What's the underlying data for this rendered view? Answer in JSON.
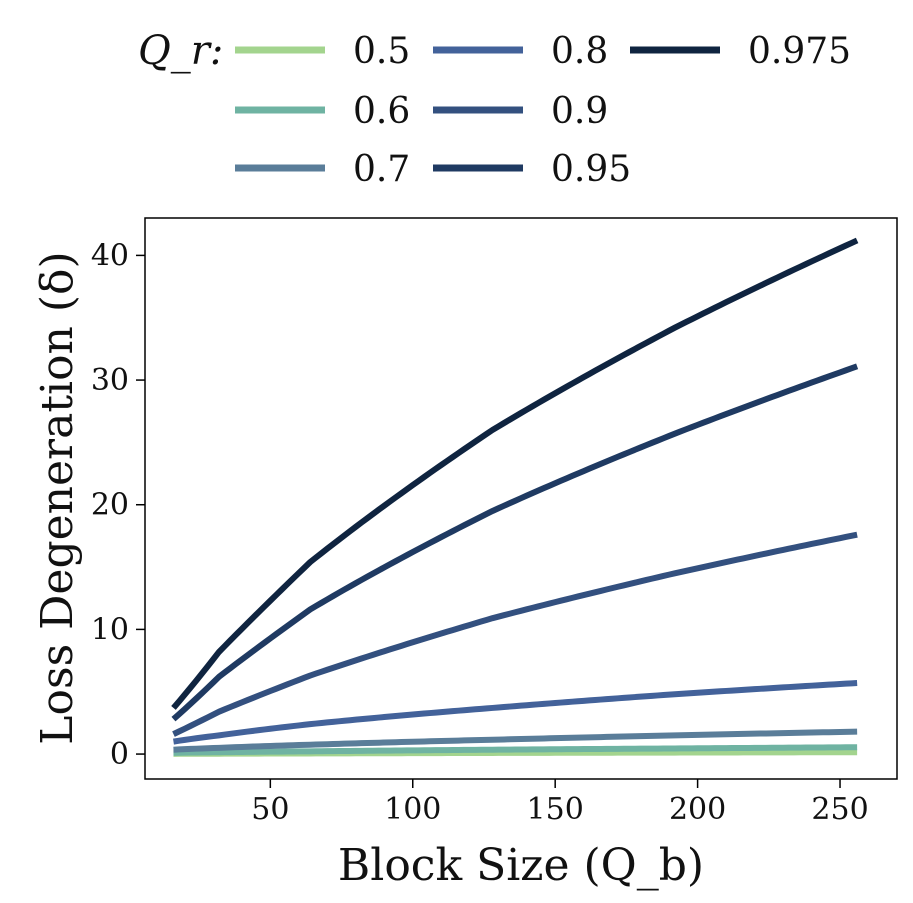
{
  "chart_data": {
    "type": "line",
    "title": "",
    "xlabel": "Block Size (Q_b)",
    "ylabel": "Loss Degeneration (δ)",
    "xlim": [
      6,
      270
    ],
    "ylim": [
      -2,
      43
    ],
    "xticks": [
      50,
      100,
      150,
      200,
      250
    ],
    "yticks": [
      0,
      10,
      20,
      30,
      40
    ],
    "grid": false,
    "legend": {
      "title": "Q_r:",
      "placement": "top",
      "columns": 3
    },
    "x_range": [
      16,
      256
    ],
    "series": [
      {
        "name": "0.5",
        "color": "#a3d48e",
        "points": [
          [
            16,
            0.02
          ],
          [
            32,
            0.03
          ],
          [
            64,
            0.05
          ],
          [
            128,
            0.09
          ],
          [
            192,
            0.12
          ],
          [
            256,
            0.15
          ]
        ]
      },
      {
        "name": "0.6",
        "color": "#6fb3a2",
        "points": [
          [
            16,
            0.1
          ],
          [
            32,
            0.15
          ],
          [
            64,
            0.22
          ],
          [
            128,
            0.35
          ],
          [
            192,
            0.45
          ],
          [
            256,
            0.55
          ]
        ]
      },
      {
        "name": "0.7",
        "color": "#5a7d99",
        "points": [
          [
            16,
            0.35
          ],
          [
            32,
            0.5
          ],
          [
            64,
            0.75
          ],
          [
            128,
            1.15
          ],
          [
            192,
            1.5
          ],
          [
            256,
            1.8
          ]
        ]
      },
      {
        "name": "0.8",
        "color": "#43629a",
        "points": [
          [
            16,
            1.0
          ],
          [
            32,
            1.5
          ],
          [
            64,
            2.4
          ],
          [
            128,
            3.7
          ],
          [
            192,
            4.8
          ],
          [
            256,
            5.7
          ]
        ]
      },
      {
        "name": "0.9",
        "color": "#33507f",
        "points": [
          [
            16,
            1.6
          ],
          [
            32,
            3.4
          ],
          [
            64,
            6.3
          ],
          [
            128,
            10.9
          ],
          [
            192,
            14.5
          ],
          [
            256,
            17.6
          ]
        ]
      },
      {
        "name": "0.95",
        "color": "#1f3a62",
        "points": [
          [
            16,
            2.8
          ],
          [
            32,
            6.2
          ],
          [
            64,
            11.6
          ],
          [
            128,
            19.5
          ],
          [
            192,
            25.7
          ],
          [
            256,
            31.1
          ]
        ]
      },
      {
        "name": "0.975",
        "color": "#0f2440",
        "points": [
          [
            16,
            3.7
          ],
          [
            32,
            8.2
          ],
          [
            64,
            15.4
          ],
          [
            128,
            26.0
          ],
          [
            192,
            34.2
          ],
          [
            256,
            41.2
          ]
        ]
      }
    ]
  }
}
